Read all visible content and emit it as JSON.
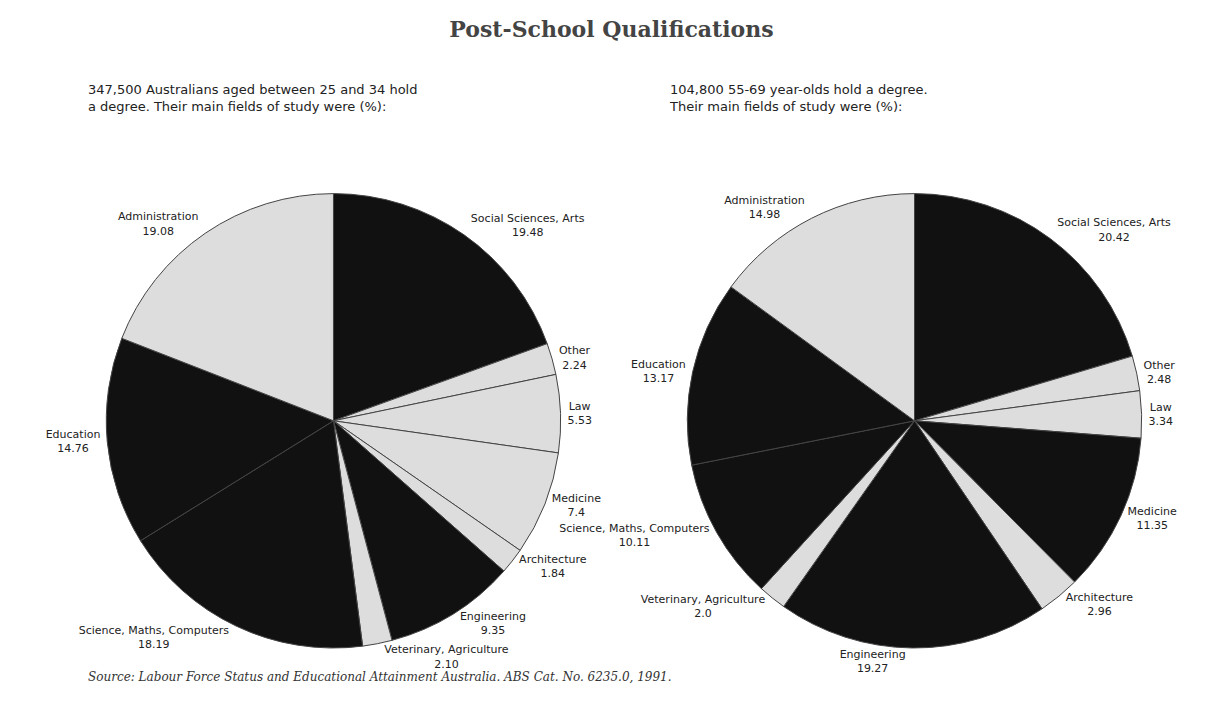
{
  "title": "Post-School Qualifications",
  "annotations": [
    "Source: Labour Force Status and Educational Attainment Australia. ABS Cat. No. 6235.0, 1991."
  ],
  "chart_data": [
    {
      "type": "pie",
      "subtitle": "347,500 Australians aged between 25 and 34 hold\na degree. Their main fields of study were (%):",
      "categories": [
        "Social Sciences, Arts",
        "Other",
        "Law",
        "Medicine",
        "Architecture",
        "Engineering",
        "Veterinary, Agriculture",
        "Science, Maths, Computers",
        "Education",
        "Administration"
      ],
      "values": [
        19.48,
        2.24,
        5.53,
        7.4,
        1.84,
        9.35,
        2.1,
        18.19,
        14.76,
        19.08
      ],
      "value_labels": [
        "19.48",
        "2.24",
        "5.53",
        "7.4",
        "1.84",
        "9.35",
        "2.10",
        "18.19",
        "14.76",
        "19.08"
      ],
      "colors": [
        "#111111",
        "#dddddd",
        "#dddddd",
        "#dddddd",
        "#dddddd",
        "#111111",
        "#dddddd",
        "#111111",
        "#111111",
        "#dddddd"
      ],
      "data_labels": true
    },
    {
      "type": "pie",
      "subtitle": "104,800 55-69 year-olds hold a degree.\nTheir main fields of study were (%):",
      "categories": [
        "Social Sciences, Arts",
        "Other",
        "Law",
        "Medicine",
        "Architecture",
        "Engineering",
        "Veterinary, Agriculture",
        "Science, Maths, Computers",
        "Education",
        "Administration"
      ],
      "values": [
        20.42,
        2.48,
        3.34,
        11.35,
        2.96,
        19.27,
        2.0,
        10.11,
        13.17,
        14.98
      ],
      "value_labels": [
        "20.42",
        "2.48",
        "3.34",
        "11.35",
        "2.96",
        "19.27",
        "2.0",
        "10.11",
        "13.17",
        "14.98"
      ],
      "colors": [
        "#111111",
        "#dddddd",
        "#dddddd",
        "#111111",
        "#dddddd",
        "#111111",
        "#dddddd",
        "#111111",
        "#111111",
        "#dddddd"
      ],
      "data_labels": true
    }
  ]
}
